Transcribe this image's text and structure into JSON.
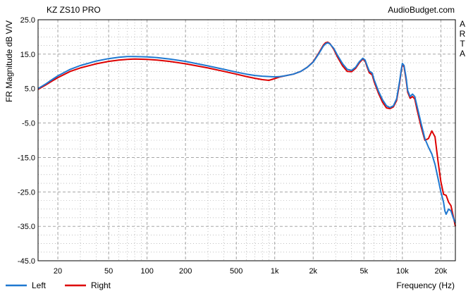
{
  "chart_data": {
    "type": "line",
    "title": "KZ ZS10 PRO",
    "source": "AudioBudget.com",
    "watermark": [
      "A",
      "R",
      "T",
      "A"
    ],
    "xlabel": "Frequency (Hz)",
    "ylabel": "FR Magnitude dB V/V",
    "xscale": "log",
    "xlim": [
      14,
      26000
    ],
    "ylim": [
      -45,
      25
    ],
    "yticks": [
      25.0,
      15.0,
      5.0,
      -5.0,
      -15.0,
      -25.0,
      -35.0,
      -45.0
    ],
    "ytick_labels": [
      "25.0",
      "15.0",
      "5.0",
      "-5.0",
      "-15.0",
      "-25.0",
      "-35.0",
      "-45.0"
    ],
    "xticks": [
      20,
      50,
      100,
      200,
      500,
      1000,
      2000,
      5000,
      10000,
      20000
    ],
    "xtick_labels": [
      "20",
      "50",
      "100",
      "200",
      "500",
      "1k",
      "2k",
      "5k",
      "10k",
      "20k"
    ],
    "grid": true,
    "legend_position": "bottom-left",
    "background": "#ffffff",
    "series": [
      {
        "name": "Left",
        "color": "#1f78d0",
        "points": [
          [
            14,
            5.0
          ],
          [
            16,
            6.3
          ],
          [
            18,
            7.6
          ],
          [
            20,
            8.7
          ],
          [
            25,
            10.6
          ],
          [
            30,
            11.7
          ],
          [
            40,
            13.0
          ],
          [
            50,
            13.7
          ],
          [
            60,
            14.1
          ],
          [
            70,
            14.3
          ],
          [
            80,
            14.3
          ],
          [
            100,
            14.2
          ],
          [
            120,
            14.0
          ],
          [
            150,
            13.6
          ],
          [
            200,
            12.9
          ],
          [
            300,
            11.6
          ],
          [
            400,
            10.6
          ],
          [
            500,
            9.8
          ],
          [
            600,
            9.2
          ],
          [
            700,
            8.8
          ],
          [
            800,
            8.6
          ],
          [
            900,
            8.5
          ],
          [
            1000,
            8.4
          ],
          [
            1100,
            8.5
          ],
          [
            1200,
            8.7
          ],
          [
            1400,
            9.2
          ],
          [
            1600,
            10.0
          ],
          [
            1800,
            11.2
          ],
          [
            2000,
            12.7
          ],
          [
            2200,
            15.0
          ],
          [
            2400,
            17.3
          ],
          [
            2500,
            18.0
          ],
          [
            2600,
            18.3
          ],
          [
            2700,
            18.0
          ],
          [
            2900,
            16.7
          ],
          [
            3100,
            14.7
          ],
          [
            3400,
            12.2
          ],
          [
            3700,
            10.6
          ],
          [
            4000,
            10.3
          ],
          [
            4300,
            11.2
          ],
          [
            4600,
            12.8
          ],
          [
            4900,
            13.8
          ],
          [
            5100,
            13.3
          ],
          [
            5300,
            11.6
          ],
          [
            5500,
            10.1
          ],
          [
            5800,
            9.5
          ],
          [
            6000,
            7.6
          ],
          [
            6500,
            4.2
          ],
          [
            7000,
            1.7
          ],
          [
            7500,
            0.0
          ],
          [
            8000,
            -0.5
          ],
          [
            8500,
            0.0
          ],
          [
            9000,
            2.0
          ],
          [
            9500,
            7.0
          ],
          [
            9800,
            10.6
          ],
          [
            10000,
            12.3
          ],
          [
            10300,
            11.7
          ],
          [
            10700,
            8.0
          ],
          [
            11000,
            4.5
          ],
          [
            11500,
            2.7
          ],
          [
            12000,
            3.4
          ],
          [
            12500,
            2.7
          ],
          [
            13000,
            0.0
          ],
          [
            14000,
            -5.0
          ],
          [
            15000,
            -9.5
          ],
          [
            16000,
            -12.0
          ],
          [
            17000,
            -14.0
          ],
          [
            18000,
            -17.0
          ],
          [
            19000,
            -21.0
          ],
          [
            20000,
            -25.0
          ],
          [
            21000,
            -28.0
          ],
          [
            21500,
            -30.5
          ],
          [
            22000,
            -31.5
          ],
          [
            23000,
            -30.0
          ],
          [
            24000,
            -30.5
          ],
          [
            25000,
            -32.5
          ],
          [
            26000,
            -34.0
          ]
        ]
      },
      {
        "name": "Right",
        "color": "#dd0000",
        "points": [
          [
            14,
            4.8
          ],
          [
            16,
            6.0
          ],
          [
            18,
            7.2
          ],
          [
            20,
            8.2
          ],
          [
            25,
            10.0
          ],
          [
            30,
            11.0
          ],
          [
            40,
            12.2
          ],
          [
            50,
            12.9
          ],
          [
            60,
            13.3
          ],
          [
            70,
            13.5
          ],
          [
            80,
            13.6
          ],
          [
            100,
            13.5
          ],
          [
            120,
            13.3
          ],
          [
            150,
            12.9
          ],
          [
            200,
            12.2
          ],
          [
            300,
            11.0
          ],
          [
            400,
            10.0
          ],
          [
            500,
            9.2
          ],
          [
            600,
            8.5
          ],
          [
            700,
            8.0
          ],
          [
            800,
            7.6
          ],
          [
            900,
            7.4
          ],
          [
            1000,
            7.9
          ],
          [
            1100,
            8.4
          ],
          [
            1200,
            8.7
          ],
          [
            1400,
            9.2
          ],
          [
            1600,
            10.0
          ],
          [
            1800,
            11.2
          ],
          [
            2000,
            12.8
          ],
          [
            2200,
            15.2
          ],
          [
            2400,
            17.6
          ],
          [
            2500,
            18.3
          ],
          [
            2600,
            18.5
          ],
          [
            2700,
            18.1
          ],
          [
            2900,
            16.4
          ],
          [
            3100,
            14.2
          ],
          [
            3400,
            11.6
          ],
          [
            3700,
            10.0
          ],
          [
            4000,
            9.9
          ],
          [
            4300,
            10.9
          ],
          [
            4600,
            12.5
          ],
          [
            4900,
            13.6
          ],
          [
            5100,
            13.0
          ],
          [
            5300,
            11.2
          ],
          [
            5500,
            9.6
          ],
          [
            5800,
            9.0
          ],
          [
            6000,
            7.0
          ],
          [
            6500,
            3.6
          ],
          [
            7000,
            1.0
          ],
          [
            7500,
            -0.6
          ],
          [
            8000,
            -0.8
          ],
          [
            8500,
            -0.3
          ],
          [
            9000,
            1.5
          ],
          [
            9500,
            6.5
          ],
          [
            9800,
            10.3
          ],
          [
            10000,
            12.0
          ],
          [
            10300,
            11.3
          ],
          [
            10700,
            7.4
          ],
          [
            11000,
            4.0
          ],
          [
            11500,
            2.2
          ],
          [
            12000,
            2.7
          ],
          [
            12500,
            2.0
          ],
          [
            13000,
            -1.0
          ],
          [
            14000,
            -6.0
          ],
          [
            15000,
            -10.0
          ],
          [
            16000,
            -9.5
          ],
          [
            17000,
            -7.3
          ],
          [
            18000,
            -9.0
          ],
          [
            19000,
            -16.0
          ],
          [
            20000,
            -22.0
          ],
          [
            21000,
            -25.7
          ],
          [
            22000,
            -26.0
          ],
          [
            23000,
            -28.0
          ],
          [
            24000,
            -29.0
          ],
          [
            25000,
            -32.0
          ],
          [
            26000,
            -35.0
          ]
        ]
      }
    ]
  }
}
